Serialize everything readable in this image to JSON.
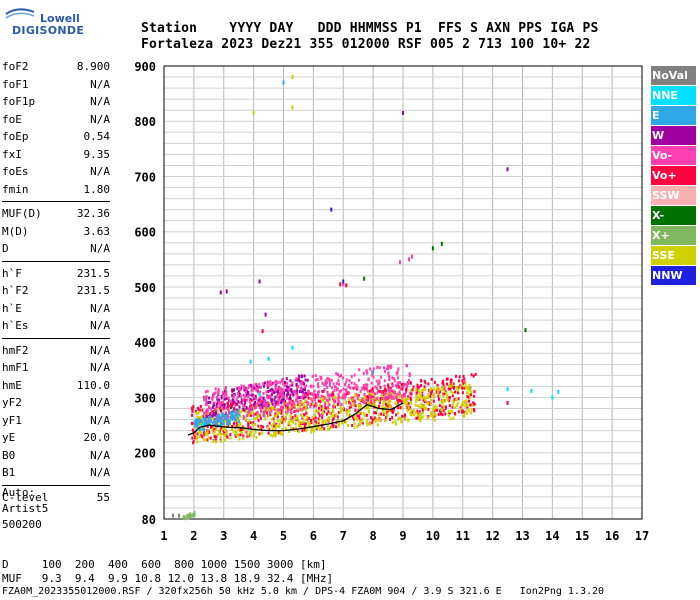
{
  "logo": {
    "line1": "Lowell",
    "line2": "DIGISONDE"
  },
  "header": {
    "row1": "Station    YYYY DAY   DDD HHMMSS P1  FFS S AXN PPS IGA PS",
    "row2": "Fortaleza 2023 Dez21 355 012000 RSF 005 2 713 100 10+ 22"
  },
  "params": [
    {
      "group": [
        {
          "label": "foF2",
          "value": "8.900"
        },
        {
          "label": "foF1",
          "value": "N/A"
        },
        {
          "label": "foF1p",
          "value": "N/A"
        },
        {
          "label": "foE",
          "value": "N/A"
        },
        {
          "label": "foEp",
          "value": "0.54"
        },
        {
          "label": "fxI",
          "value": "9.35"
        },
        {
          "label": "foEs",
          "value": "N/A"
        },
        {
          "label": "fmin",
          "value": "1.80"
        }
      ]
    },
    {
      "group": [
        {
          "label": "MUF(D)",
          "value": "32.36"
        },
        {
          "label": "M(D)",
          "value": "3.63"
        },
        {
          "label": "D",
          "value": "N/A"
        }
      ]
    },
    {
      "group": [
        {
          "label": "h`F",
          "value": "231.5"
        },
        {
          "label": "h`F2",
          "value": "231.5"
        },
        {
          "label": "h`E",
          "value": "N/A"
        },
        {
          "label": "h`Es",
          "value": "N/A"
        }
      ]
    },
    {
      "group": [
        {
          "label": "hmF2",
          "value": "N/A"
        },
        {
          "label": "hmF1",
          "value": "N/A"
        },
        {
          "label": "hmE",
          "value": "110.0"
        },
        {
          "label": "yF2",
          "value": "N/A"
        },
        {
          "label": "yF1",
          "value": "N/A"
        },
        {
          "label": "yE",
          "value": "20.0"
        },
        {
          "label": "B0",
          "value": "N/A"
        },
        {
          "label": "B1",
          "value": "N/A"
        }
      ]
    },
    {
      "group": [
        {
          "label": "C-level",
          "value": "55"
        }
      ]
    }
  ],
  "auto": {
    "line1": "Auto:",
    "line2": "Artist5",
    "line3": "500200"
  },
  "legend": [
    {
      "label": "NoVal",
      "color": "#808080"
    },
    {
      "label": "NNE",
      "color": "#00e0ff"
    },
    {
      "label": "E",
      "color": "#30a8e8"
    },
    {
      "label": "W",
      "color": "#a000a0"
    },
    {
      "label": "Vo-",
      "color": "#ff40b0"
    },
    {
      "label": "Vo+",
      "color": "#ff0040"
    },
    {
      "label": "SSW",
      "color": "#f8b0b0"
    },
    {
      "label": "X-",
      "color": "#007000"
    },
    {
      "label": "X+",
      "color": "#80b860"
    },
    {
      "label": "SSE",
      "color": "#d0d000"
    },
    {
      "label": "NNW",
      "color": "#2020e0"
    }
  ],
  "footer": {
    "d_line": "D     100  200  400  600  800 1000 1500 3000 [km]",
    "muf_line": "MUF   9.3  9.4  9.9 10.8 12.0 13.8 18.9 32.4 [MHz]",
    "file_line": "FZA0M_2023355012000.RSF / 320fx256h 50 kHz 5.0 km / DPS-4 FZA0M 904 / 3.9 S 321.6 E   Ion2Png 1.3.20"
  },
  "chart_data": {
    "type": "scatter",
    "xlim": [
      1,
      17
    ],
    "ylim": [
      80,
      900
    ],
    "x_ticks": [
      1,
      2,
      3,
      4,
      5,
      6,
      7,
      8,
      9,
      10,
      11,
      12,
      13,
      14,
      15,
      16,
      17
    ],
    "y_ticks": [
      80,
      200,
      300,
      400,
      500,
      600,
      700,
      800,
      900
    ],
    "grid": true,
    "trace": {
      "x": [
        1.8,
        2.0,
        2.2,
        2.5,
        2.8,
        3.2,
        3.6,
        4.0,
        4.5,
        5.0,
        5.5,
        6.0,
        6.5,
        7.0,
        7.4,
        7.8,
        8.2,
        8.6,
        9.0
      ],
      "y": [
        232,
        236,
        246,
        250,
        248,
        246,
        245,
        242,
        240,
        240,
        243,
        247,
        252,
        258,
        270,
        287,
        280,
        278,
        290
      ]
    },
    "clusters": [
      {
        "series": "Vo+",
        "x": [
          1.9,
          11.4
        ],
        "y": [
          220,
          345
        ]
      },
      {
        "series": "SSE",
        "x": [
          2.0,
          11.3
        ],
        "y": [
          218,
          330
        ]
      },
      {
        "series": "W",
        "x": [
          2.3,
          5.8
        ],
        "y": [
          265,
          345
        ]
      },
      {
        "series": "Vo-",
        "x": [
          2.3,
          9.2
        ],
        "y": [
          255,
          365
        ]
      },
      {
        "series": "E",
        "x": [
          2.0,
          3.5
        ],
        "y": [
          240,
          280
        ]
      },
      {
        "series": "X+",
        "x": [
          1.6,
          2.0
        ],
        "y": [
          82,
          95
        ]
      }
    ],
    "points": [
      {
        "series": "NNE",
        "x": [
          2.3,
          3.9,
          4.5,
          4.2,
          5.3,
          12.5,
          13.3,
          14.0,
          14.2
        ],
        "y": [
          250,
          365,
          370,
          305,
          390,
          315,
          312,
          300,
          310
        ]
      },
      {
        "series": "W",
        "x": [
          4.4,
          3.1,
          4.2,
          12.5,
          9.0,
          2.9
        ],
        "y": [
          450,
          492,
          510,
          713,
          815,
          490
        ]
      },
      {
        "series": "Vo-",
        "x": [
          9.3,
          9.2,
          8.9,
          7.0
        ],
        "y": [
          555,
          550,
          545,
          505
        ]
      },
      {
        "series": "Vo+",
        "x": [
          6.9,
          7.1,
          12.5,
          4.3
        ],
        "y": [
          505,
          503,
          290,
          420
        ]
      },
      {
        "series": "X-",
        "x": [
          10.3,
          10.0,
          7.7,
          13.1
        ],
        "y": [
          578,
          570,
          515,
          422
        ]
      },
      {
        "series": "SSE",
        "x": [
          4.0,
          5.3,
          5.3
        ],
        "y": [
          815,
          825,
          880
        ]
      },
      {
        "series": "E",
        "x": [
          5.0,
          8.0
        ],
        "y": [
          870,
          345
        ]
      },
      {
        "series": "NNW",
        "x": [
          6.6,
          7.0
        ],
        "y": [
          640,
          510
        ]
      },
      {
        "series": "NoVal",
        "x": [
          1.3,
          1.5
        ],
        "y": [
          86,
          86
        ]
      }
    ]
  }
}
